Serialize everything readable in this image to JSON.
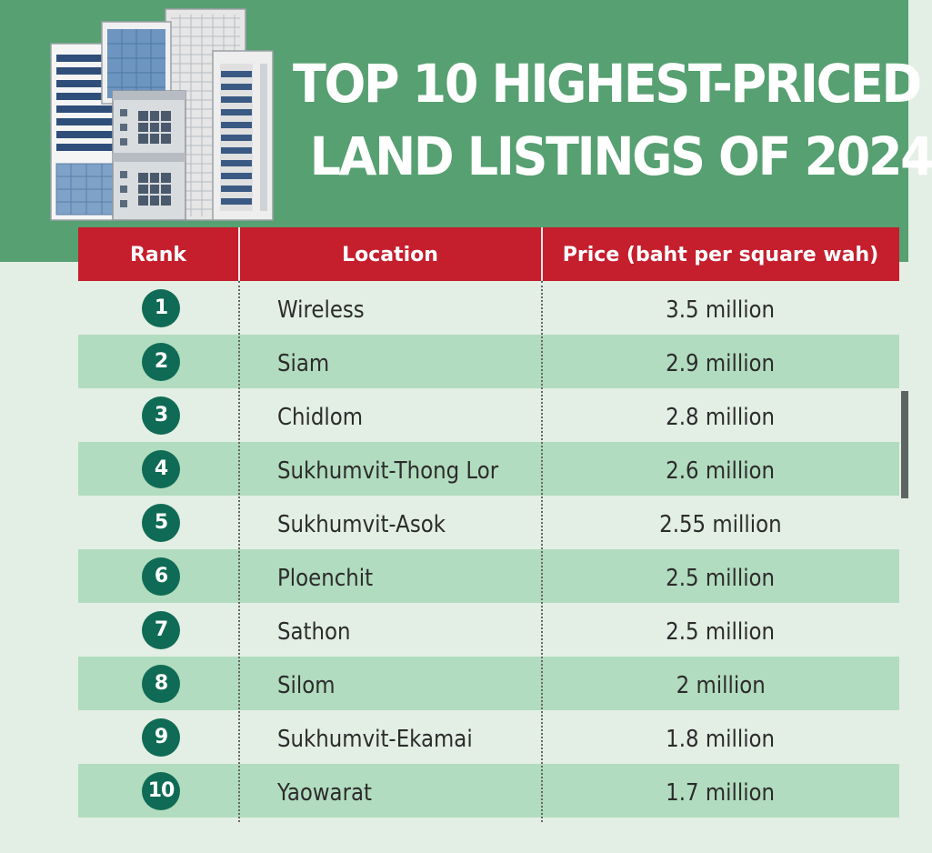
{
  "title": {
    "line1": "TOP 10 HIGHEST-PRICED",
    "line2": "LAND LISTINGS OF 2024"
  },
  "table": {
    "headers": {
      "rank": "Rank",
      "location": "Location",
      "price": "Price (baht per square wah)"
    },
    "rows": [
      {
        "rank": "1",
        "location": "Wireless",
        "price": "3.5 million"
      },
      {
        "rank": "2",
        "location": "Siam",
        "price": "2.9 million"
      },
      {
        "rank": "3",
        "location": "Chidlom",
        "price": "2.8 million"
      },
      {
        "rank": "4",
        "location": "Sukhumvit-Thong Lor",
        "price": "2.6 million"
      },
      {
        "rank": "5",
        "location": "Sukhumvit-Asok",
        "price": "2.55 million"
      },
      {
        "rank": "6",
        "location": "Ploenchit",
        "price": "2.5 million"
      },
      {
        "rank": "7",
        "location": "Sathon",
        "price": "2.5 million"
      },
      {
        "rank": "8",
        "location": "Silom",
        "price": "2 million"
      },
      {
        "rank": "9",
        "location": "Sukhumvit-Ekamai",
        "price": "1.8 million"
      },
      {
        "rank": "10",
        "location": "Yaowarat",
        "price": "1.7 million"
      }
    ]
  },
  "colors": {
    "header_green": "#56a071",
    "table_header_red": "#c51e2d",
    "row_alt_green": "#b2dcbf",
    "badge_teal": "#0f6b55",
    "page_bg": "#e3efe4"
  },
  "icons": {
    "header_illustration": "buildings-illustration"
  }
}
